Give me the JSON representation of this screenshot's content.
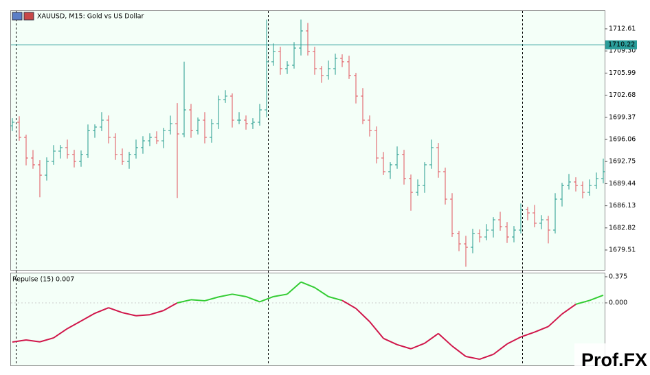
{
  "chart_data": [
    {
      "type": "ohlc",
      "title": "XAUUSD, M15:  Gold vs US Dollar",
      "open": [
        1698.1,
        1698.63,
        1696.37,
        1693.28,
        1692.26,
        1690.71,
        1692.77,
        1694.31,
        1694.83,
        1693.8,
        1692.77,
        1693.8,
        1697.4,
        1697.91,
        1698.94,
        1696.37,
        1693.8,
        1692.77,
        1693.8,
        1694.83,
        1695.85,
        1696.37,
        1695.85,
        1697.4,
        1698.42,
        1696.88,
        1700.48,
        1697.4,
        1698.94,
        1696.37,
        1698.42,
        1702.02,
        1702.54,
        1698.94,
        1698.94,
        1698.42,
        1698.63,
        1700.48,
        1707.68,
        1709.22,
        1706.65,
        1707.16,
        1709.73,
        1712.3,
        1709.22,
        1706.65,
        1705.62,
        1706.65,
        1708.19,
        1707.68,
        1705.62,
        1702.54,
        1698.94,
        1697.4,
        1693.28,
        1691.23,
        1692.26,
        1693.8,
        1690.2,
        1688.14,
        1689.17,
        1692.26,
        1694.83,
        1691.23,
        1687.12,
        1681.98,
        1680.43,
        1679.92,
        1681.98,
        1681.46,
        1682.49,
        1684.03,
        1683.0,
        1681.46,
        1682.49,
        1685.57,
        1685.06,
        1683.52,
        1684.03,
        1682.49,
        1687.12,
        1689.17,
        1689.69,
        1689.17,
        1688.14,
        1689.17,
        1690.2
      ],
      "high": [
        1699.23,
        1699.53,
        1696.77,
        1694.48,
        1692.96,
        1693.37,
        1695.21,
        1695.23,
        1696.03,
        1694.5,
        1694.4,
        1698.3,
        1698.31,
        1700.14,
        1699.64,
        1696.97,
        1694.7,
        1694.2,
        1696.03,
        1696.55,
        1696.97,
        1697.27,
        1697.8,
        1699.62,
        1701.5,
        1707.7,
        1701.38,
        1699.34,
        1700.14,
        1699.12,
        1702.62,
        1703.44,
        1702.94,
        1700.14,
        1699.64,
        1699.23,
        1701.38,
        1714.0,
        1710.42,
        1709.92,
        1707.76,
        1710.63,
        1714.0,
        1713.5,
        1709.92,
        1707.05,
        1707.85,
        1708.89,
        1708.79,
        1708.58,
        1706.02,
        1703.74,
        1699.64,
        1698.0,
        1694.18,
        1692.66,
        1695.0,
        1694.5,
        1690.8,
        1690.07,
        1692.66,
        1696.03,
        1695.53,
        1691.83,
        1688.02,
        1682.38,
        1681.63,
        1682.68,
        1682.58,
        1683.39,
        1684.43,
        1685.23,
        1683.7,
        1683.09,
        1686.47,
        1685.97,
        1686.26,
        1684.73,
        1684.63,
        1688.02,
        1689.57,
        1690.89,
        1690.39,
        1689.77,
        1690.07,
        1691.1,
        1693.2
      ],
      "low": [
        1697.3,
        1695.87,
        1692.18,
        1691.66,
        1687.4,
        1689.91,
        1692.27,
        1693.21,
        1693.2,
        1691.87,
        1691.97,
        1693.3,
        1696.3,
        1697.31,
        1695.47,
        1693.0,
        1692.27,
        1691.67,
        1693.2,
        1693.93,
        1695.05,
        1695.35,
        1694.75,
        1696.8,
        1687.3,
        1696.38,
        1696.3,
        1696.8,
        1695.47,
        1695.57,
        1697.62,
        1701.52,
        1697.84,
        1698.34,
        1697.52,
        1697.62,
        1698.13,
        1699.38,
        1707.08,
        1705.75,
        1705.85,
        1706.66,
        1708.63,
        1708.62,
        1705.75,
        1704.52,
        1705.02,
        1705.75,
        1706.88,
        1705.12,
        1701.44,
        1698.34,
        1696.5,
        1692.48,
        1690.73,
        1690.13,
        1691.66,
        1689.3,
        1685.4,
        1687.64,
        1688.07,
        1691.66,
        1690.33,
        1686.32,
        1681.48,
        1679.33,
        1677.0,
        1679.02,
        1680.66,
        1680.96,
        1681.39,
        1682.4,
        1680.56,
        1680.66,
        1681.99,
        1683.96,
        1682.92,
        1682.62,
        1680.5,
        1681.99,
        1686.02,
        1688.57,
        1688.27,
        1687.24,
        1687.64,
        1688.67,
        1689.5
      ],
      "close": [
        1698.63,
        1696.37,
        1693.28,
        1692.26,
        1690.71,
        1692.77,
        1694.31,
        1694.83,
        1693.8,
        1692.77,
        1693.8,
        1697.4,
        1697.91,
        1698.94,
        1696.37,
        1693.8,
        1692.77,
        1693.8,
        1694.83,
        1695.85,
        1696.37,
        1695.85,
        1697.4,
        1698.42,
        1696.88,
        1700.48,
        1697.4,
        1698.94,
        1696.37,
        1698.42,
        1702.02,
        1702.54,
        1698.94,
        1698.94,
        1698.42,
        1698.63,
        1700.48,
        1707.68,
        1709.22,
        1706.65,
        1707.16,
        1709.73,
        1712.3,
        1709.22,
        1706.65,
        1705.62,
        1706.65,
        1708.19,
        1707.68,
        1705.62,
        1702.54,
        1698.94,
        1697.4,
        1693.28,
        1691.23,
        1692.26,
        1693.8,
        1690.2,
        1688.14,
        1689.17,
        1692.26,
        1694.83,
        1691.23,
        1687.12,
        1681.98,
        1680.43,
        1679.92,
        1681.98,
        1681.46,
        1682.49,
        1684.03,
        1683.0,
        1681.46,
        1682.49,
        1685.57,
        1685.06,
        1683.52,
        1684.03,
        1682.49,
        1687.12,
        1689.17,
        1689.69,
        1689.17,
        1688.14,
        1689.17,
        1690.2,
        1691.23
      ],
      "up_color": "#1f9a8c",
      "down_color": "#e0505a",
      "current_price": 1710.22,
      "current_price_color": "#2a9d9a",
      "ylim": [
        1676.53,
        1715.28
      ],
      "yticks": [
        1712.61,
        {
          "value": 1709.3,
          "label": "1709.30"
        },
        1705.99,
        1702.68,
        1699.37,
        1696.06,
        1692.75,
        1689.44,
        1686.13,
        1682.82,
        1679.51
      ]
    },
    {
      "type": "line",
      "title": "Repulse (15) 0.007",
      "values": [
        -0.563,
        -0.533,
        -0.56,
        -0.503,
        -0.37,
        -0.26,
        -0.15,
        -0.07,
        -0.14,
        -0.185,
        -0.17,
        -0.11,
        0.0,
        0.045,
        0.03,
        0.085,
        0.125,
        0.09,
        0.015,
        0.09,
        0.125,
        0.3,
        0.22,
        0.09,
        0.035,
        -0.08,
        -0.27,
        -0.51,
        -0.6,
        -0.66,
        -0.58,
        -0.44,
        -0.62,
        -0.77,
        -0.81,
        -0.74,
        -0.59,
        -0.49,
        -0.42,
        -0.34,
        -0.16,
        -0.02,
        0.035,
        0.11
      ],
      "positive_color": "#33cc33",
      "negative_color": "#d0164a",
      "ylim": [
        -0.898,
        0.424
      ],
      "yticks": [
        0.375,
        {
          "value": 0,
          "label": "0.000"
        }
      ]
    }
  ],
  "watermark": "Prof.FX"
}
